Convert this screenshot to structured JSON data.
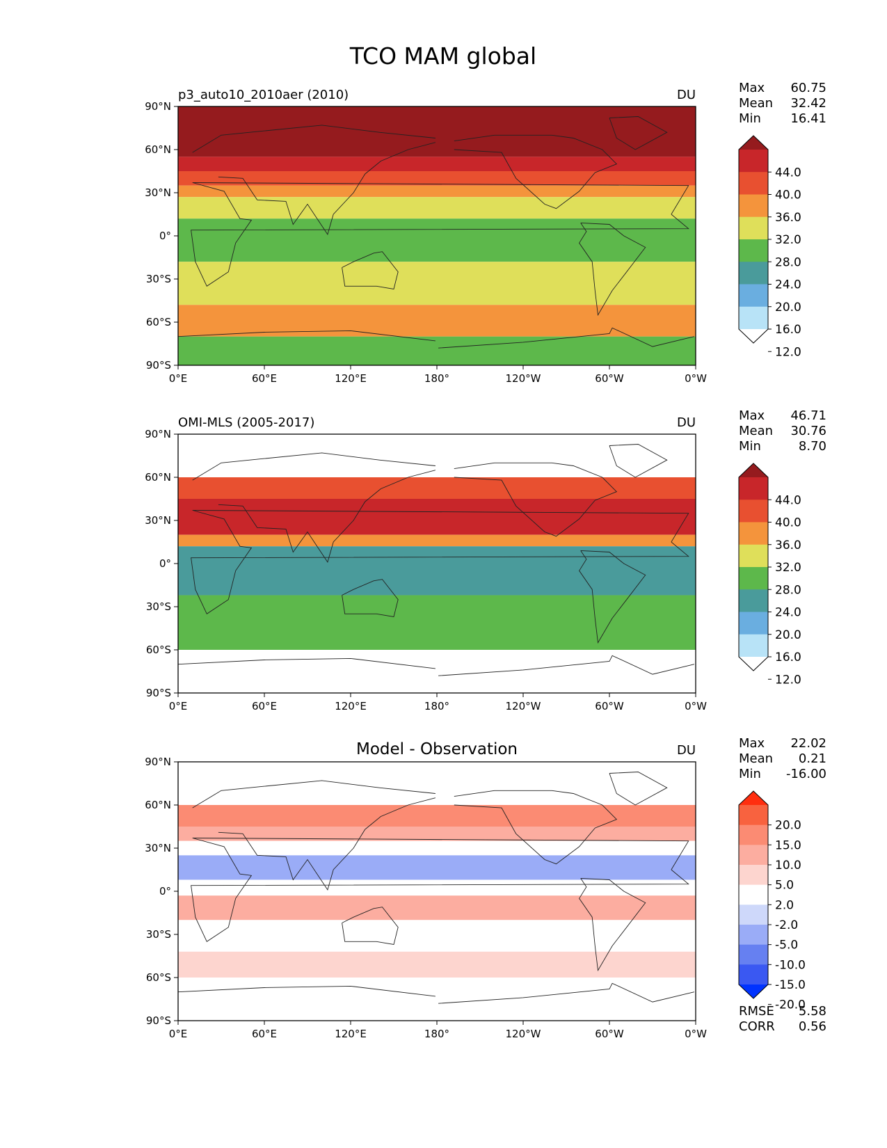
{
  "figure_title": "TCO MAM global",
  "lon_ticks": [
    "0°E",
    "60°E",
    "120°E",
    "180°",
    "120°W",
    "60°W",
    "0°W"
  ],
  "lat_ticks": [
    "90°N",
    "60°N",
    "30°N",
    "0°",
    "30°S",
    "60°S",
    "90°S"
  ],
  "chart_data": [
    {
      "type": "heatmap",
      "title": "p3_auto10_2010aer (2010)",
      "units": "DU",
      "stats": [
        {
          "label": "Max",
          "value": "60.75"
        },
        {
          "label": "Mean",
          "value": "32.42"
        },
        {
          "label": "Min",
          "value": "16.41"
        }
      ],
      "colorbar": {
        "ticks": [
          "44.0",
          "40.0",
          "36.0",
          "32.0",
          "28.0",
          "24.0",
          "20.0",
          "16.0",
          "12.0"
        ],
        "colors": [
          "#951b1e",
          "#c8262a",
          "#e85030",
          "#f4943c",
          "#dfdf5a",
          "#5db84b",
          "#4a9b9b",
          "#6aaee0",
          "#b8e3f7",
          "#ffffff"
        ]
      },
      "zones": [
        {
          "lat": [
            90,
            55
          ],
          "color": "#951b1e"
        },
        {
          "lat": [
            55,
            45
          ],
          "color": "#c8262a"
        },
        {
          "lat": [
            45,
            35
          ],
          "color": "#e85030"
        },
        {
          "lat": [
            35,
            27
          ],
          "color": "#f4943c"
        },
        {
          "lat": [
            27,
            12
          ],
          "color": "#dfdf5a"
        },
        {
          "lat": [
            12,
            -18
          ],
          "color": "#5db84b"
        },
        {
          "lat": [
            -18,
            -48
          ],
          "color": "#dfdf5a"
        },
        {
          "lat": [
            -48,
            -70
          ],
          "color": "#f4943c"
        },
        {
          "lat": [
            -70,
            -90
          ],
          "color": "#5db84b"
        }
      ]
    },
    {
      "type": "heatmap",
      "title": "OMI-MLS (2005-2017)",
      "units": "DU",
      "stats": [
        {
          "label": "Max",
          "value": "46.71"
        },
        {
          "label": "Mean",
          "value": "30.76"
        },
        {
          "label": "Min",
          "value": "8.70"
        }
      ],
      "colorbar": {
        "ticks": [
          "44.0",
          "40.0",
          "36.0",
          "32.0",
          "28.0",
          "24.0",
          "20.0",
          "16.0",
          "12.0"
        ],
        "colors": [
          "#951b1e",
          "#c8262a",
          "#e85030",
          "#f4943c",
          "#dfdf5a",
          "#5db84b",
          "#4a9b9b",
          "#6aaee0",
          "#b8e3f7",
          "#ffffff"
        ]
      },
      "zones": [
        {
          "lat": [
            60,
            45
          ],
          "color": "#e85030"
        },
        {
          "lat": [
            45,
            20
          ],
          "color": "#c8262a"
        },
        {
          "lat": [
            20,
            12
          ],
          "color": "#f4943c"
        },
        {
          "lat": [
            12,
            -22
          ],
          "color": "#4a9b9b"
        },
        {
          "lat": [
            -22,
            -45
          ],
          "color": "#5db84b"
        },
        {
          "lat": [
            -45,
            -60
          ],
          "color": "#5db84b"
        }
      ]
    },
    {
      "type": "heatmap",
      "title": "Model - Observation",
      "units": "DU",
      "stats": [
        {
          "label": "Max",
          "value": "22.02"
        },
        {
          "label": "Mean",
          "value": "0.21"
        },
        {
          "label": "Min",
          "value": "-16.00"
        }
      ],
      "bottom_stats": [
        {
          "label": "RMSE",
          "value": "5.58"
        },
        {
          "label": "CORR",
          "value": "0.56"
        }
      ],
      "colorbar": {
        "ticks": [
          "20.0",
          "15.0",
          "10.0",
          "5.0",
          "2.0",
          "-2.0",
          "-5.0",
          "-10.0",
          "-15.0",
          "-20.0"
        ],
        "colors": [
          "#ff2e0f",
          "#f8623f",
          "#fb8b73",
          "#fcada0",
          "#fdd5cf",
          "#ffffff",
          "#ced8fa",
          "#9aacf7",
          "#6680f1",
          "#3a58f2",
          "#0033ff"
        ]
      },
      "zones": [
        {
          "lat": [
            60,
            45
          ],
          "color": "#fb8b73"
        },
        {
          "lat": [
            45,
            35
          ],
          "color": "#fcada0"
        },
        {
          "lat": [
            35,
            25
          ],
          "color": "#ffffff"
        },
        {
          "lat": [
            25,
            8
          ],
          "color": "#9aacf7"
        },
        {
          "lat": [
            8,
            -3
          ],
          "color": "#ffffff"
        },
        {
          "lat": [
            -3,
            -20
          ],
          "color": "#fcada0"
        },
        {
          "lat": [
            -20,
            -42
          ],
          "color": "#ffffff"
        },
        {
          "lat": [
            -42,
            -60
          ],
          "color": "#fdd5cf"
        }
      ]
    }
  ]
}
